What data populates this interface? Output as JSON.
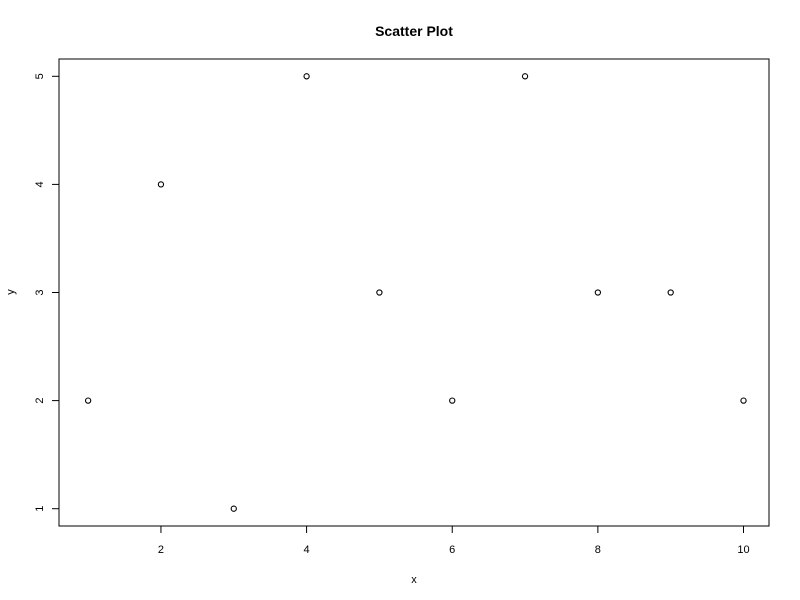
{
  "chart_data": {
    "type": "scatter",
    "title": "Scatter Plot",
    "xlabel": "x",
    "ylabel": "y",
    "xlim": [
      0.6,
      10.35
    ],
    "ylim": [
      0.84,
      5.16
    ],
    "x_ticks": [
      2,
      4,
      6,
      8,
      10
    ],
    "y_ticks": [
      1,
      2,
      3,
      4,
      5
    ],
    "grid": false,
    "legend": "none",
    "series": [
      {
        "x": [
          1,
          2,
          3,
          4,
          5,
          6,
          7,
          8,
          9,
          10
        ],
        "y": [
          2,
          4,
          1,
          5,
          3,
          2,
          5,
          3,
          3,
          2
        ]
      }
    ]
  }
}
